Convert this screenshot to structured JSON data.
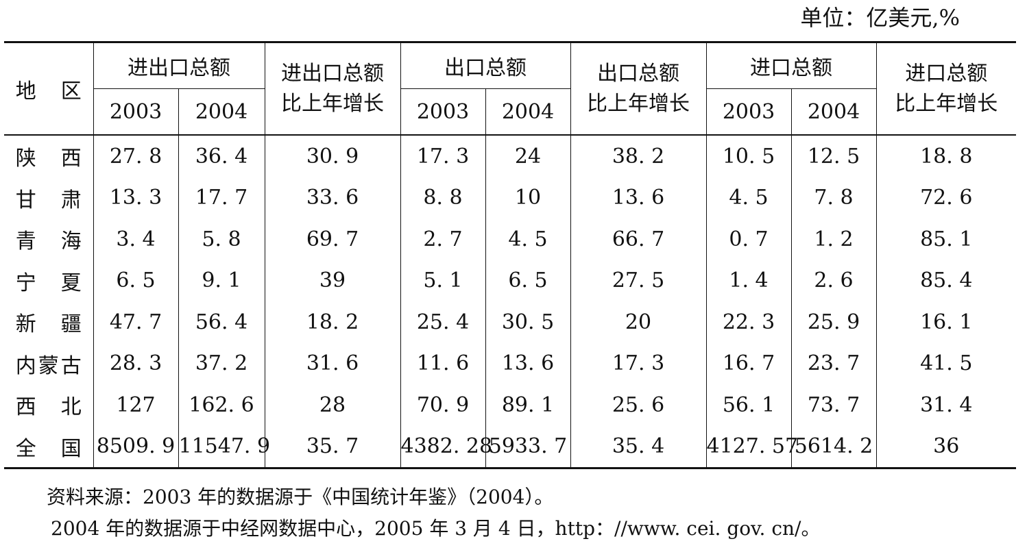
{
  "unit_label": "单位：亿美元,%",
  "header": {
    "region": "地 区",
    "total_trade": "进出口总额",
    "total_trade_growth_line1": "进出口总额",
    "total_trade_growth_line2": "比上年增长",
    "export": "出口总额",
    "export_growth_line1": "出口总额",
    "export_growth_line2": "比上年增长",
    "import": "进口总额",
    "import_growth_line1": "进口总额",
    "import_growth_line2": "比上年增长",
    "year_2003": "2003",
    "year_2004": "2004"
  },
  "rows": [
    {
      "region": "陕　西",
      "trade_2003": "27. 8",
      "trade_2004": "36. 4",
      "trade_growth": "30. 9",
      "export_2003": "17. 3",
      "export_2004": "24",
      "export_growth": "38. 2",
      "import_2003": "10. 5",
      "import_2004": "12. 5",
      "import_growth": "18. 8"
    },
    {
      "region": "甘　肃",
      "trade_2003": "13. 3",
      "trade_2004": "17. 7",
      "trade_growth": "33. 6",
      "export_2003": "8. 8",
      "export_2004": "10",
      "export_growth": "13. 6",
      "import_2003": "4. 5",
      "import_2004": "7. 8",
      "import_growth": "72. 6"
    },
    {
      "region": "青　海",
      "trade_2003": "3. 4",
      "trade_2004": "5. 8",
      "trade_growth": "69. 7",
      "export_2003": "2. 7",
      "export_2004": "4. 5",
      "export_growth": "66. 7",
      "import_2003": "0. 7",
      "import_2004": "1. 2",
      "import_growth": "85. 1"
    },
    {
      "region": "宁　夏",
      "trade_2003": "6. 5",
      "trade_2004": "9. 1",
      "trade_growth": "39",
      "export_2003": "5. 1",
      "export_2004": "6. 5",
      "export_growth": "27. 5",
      "import_2003": "1. 4",
      "import_2004": "2. 6",
      "import_growth": "85. 4"
    },
    {
      "region": "新　疆",
      "trade_2003": "47. 7",
      "trade_2004": "56. 4",
      "trade_growth": "18. 2",
      "export_2003": "25. 4",
      "export_2004": "30. 5",
      "export_growth": "20",
      "import_2003": "22. 3",
      "import_2004": "25. 9",
      "import_growth": "16. 1"
    },
    {
      "region": "内蒙古",
      "trade_2003": "28. 3",
      "trade_2004": "37. 2",
      "trade_growth": "31. 6",
      "export_2003": "11. 6",
      "export_2004": "13. 6",
      "export_growth": "17. 3",
      "import_2003": "16. 7",
      "import_2004": "23. 7",
      "import_growth": "41. 5"
    },
    {
      "region": "西　北",
      "trade_2003": "127",
      "trade_2004": "162. 6",
      "trade_growth": "28",
      "export_2003": "70. 9",
      "export_2004": "89. 1",
      "export_growth": "25. 6",
      "import_2003": "56. 1",
      "import_2004": "73. 7",
      "import_growth": "31. 4"
    },
    {
      "region": "全　国",
      "trade_2003": "8509. 9",
      "trade_2004": "11547. 9",
      "trade_growth": "35. 7",
      "export_2003": "4382. 28",
      "export_2004": "5933. 7",
      "export_growth": "35. 4",
      "import_2003": "4127. 57",
      "import_2004": "5614. 2",
      "import_growth": "36"
    }
  ],
  "notes": {
    "line1": "资料来源：2003 年的数据源于《中国统计年鉴》（2004）。",
    "line2": "2004 年的数据源于中经网数据中心，2005 年 3 月 4 日，http：//www. cei. gov. cn/。"
  }
}
